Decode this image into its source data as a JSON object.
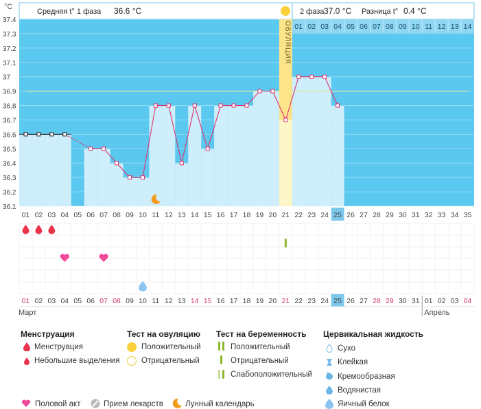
{
  "header": {
    "unit": "°C",
    "phase1_label": "Средняя t° 1 фаза",
    "phase1_value": "36.6 °C",
    "phase2_label": "2 фаза",
    "phase2_value": "37.0 °C",
    "diff_label": "Разница t°",
    "diff_value": "0.4 °C",
    "ovulation_label": "ОВУЛЯЦИЯ"
  },
  "chart_data": {
    "type": "line",
    "ylabel": "°C",
    "ylim": [
      36.1,
      37.4
    ],
    "y_ticks": [
      "36.1",
      "36.2",
      "36.3",
      "36.4",
      "36.5",
      "36.6",
      "36.7",
      "36.8",
      "36.9",
      "37",
      "37.1",
      "37.2",
      "37.3",
      "37.4"
    ],
    "cycle_days": [
      "01",
      "02",
      "03",
      "04",
      "05",
      "06",
      "07",
      "08",
      "09",
      "10",
      "11",
      "12",
      "13",
      "14",
      "15",
      "16",
      "17",
      "18",
      "19",
      "20",
      "21",
      "22",
      "23",
      "24",
      "25",
      "26",
      "27",
      "28",
      "29",
      "30",
      "31",
      "32",
      "33",
      "34",
      "35"
    ],
    "current_day": "25",
    "ovulation_day": 21,
    "luteal_days": [
      "01",
      "02",
      "03",
      "04",
      "05",
      "06",
      "07",
      "08",
      "09",
      "10",
      "11",
      "12",
      "13",
      "14"
    ],
    "coverline_phase1": 36.6,
    "coverline_phase2": 36.9,
    "series": [
      {
        "days": [
          1,
          2,
          3,
          4,
          6,
          7,
          8,
          9,
          10,
          11,
          12,
          13,
          14,
          15,
          16,
          17,
          18,
          19,
          20,
          21,
          22,
          23,
          24,
          25
        ],
        "values": [
          36.6,
          36.6,
          36.6,
          36.6,
          36.5,
          36.5,
          36.4,
          36.3,
          36.3,
          36.8,
          36.8,
          36.4,
          36.8,
          36.5,
          36.8,
          36.8,
          36.8,
          36.9,
          36.9,
          36.7,
          37.0,
          37.0,
          37.0,
          36.8
        ],
        "dashed_after": 4,
        "excluded_days": [
          1,
          2,
          3,
          4
        ]
      }
    ],
    "calendar_days": [
      "01",
      "02",
      "03",
      "04",
      "05",
      "06",
      "07",
      "08",
      "09",
      "10",
      "11",
      "12",
      "13",
      "14",
      "15",
      "16",
      "17",
      "18",
      "19",
      "20",
      "21",
      "22",
      "23",
      "24",
      "25",
      "26",
      "27",
      "28",
      "29",
      "30",
      "31",
      "01",
      "02",
      "03",
      "04"
    ],
    "weekend_calendar_indices": [
      1,
      7,
      8,
      14,
      15,
      21,
      28,
      29,
      35
    ],
    "month_labels": [
      {
        "name": "Март",
        "start_index": 1
      },
      {
        "name": "Апрель",
        "start_index": 32
      }
    ],
    "markers": {
      "menstruation": [
        1,
        2,
        3
      ],
      "intercourse": [
        4,
        7
      ],
      "cervical_fluid_egg_white": [
        10
      ],
      "moon": [
        11
      ],
      "pregnancy_test_positive": [
        21
      ]
    }
  },
  "legend": {
    "menstruation": {
      "title": "Менструация",
      "items": [
        "Менструация",
        "Небольшие выделения"
      ]
    },
    "ovulation_test": {
      "title": "Тест на овуляцию",
      "items": [
        "Положительный",
        "Отрицательный"
      ]
    },
    "pregnancy_test": {
      "title": "Тест на беременность",
      "items": [
        "Положительный",
        "Отрицательный",
        "Слабоположительный"
      ]
    },
    "cervical_fluid": {
      "title": "Цервикальная жидкость",
      "items": [
        "Сухо",
        "Клейкая",
        "Кремообразная",
        "Водянистая",
        "Яичный белок"
      ]
    },
    "other": [
      "Половой акт",
      "Прием лекарств",
      "Лунный календарь"
    ]
  },
  "colors": {
    "chart_bg": "#5bc8ef",
    "bar_fill": "#cdeefa",
    "line": "#e0336f",
    "coverline": "#e6e89a",
    "ovulation_band": "#fbe48a",
    "ovulation_band_light": "#fdf6c8",
    "header_border": "#73c4e8",
    "menstruation": "#e8334a",
    "heart": "#f0499a",
    "drop_blue": "#8cc6f0",
    "test_green": "#8cb82a",
    "sun": "#f9cf3a",
    "moon": "#f39c1e",
    "weekend": "#d43a6a",
    "current_day_bg": "#7cc8ec"
  }
}
